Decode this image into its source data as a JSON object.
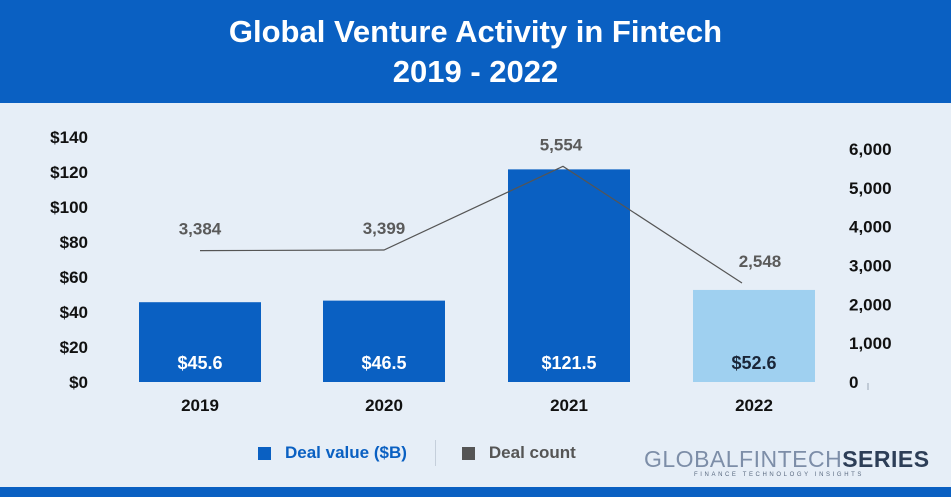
{
  "header": {
    "title_line1": "Global Venture Activity in Fintech",
    "title_line2": "2019 - 2022"
  },
  "legend": {
    "deal_value": "Deal value ($B)",
    "deal_count": "Deal count"
  },
  "brand": {
    "name_light": "GLOBALFINTECH",
    "name_bold": "SERIES",
    "tagline": "FINANCE TECHNOLOGY INSIGHTS"
  },
  "colors": {
    "header_blue": "#0a60c2",
    "bar_blue": "#0a60c2",
    "bar_light": "#9fd0f0",
    "line": "#555555",
    "background": "#e6eef7"
  },
  "chart_data": {
    "type": "bar",
    "title": "Global Venture Activity in Fintech",
    "subtitle": "2019 - 2022",
    "categories": [
      "2019",
      "2020",
      "2021",
      "2022"
    ],
    "series": [
      {
        "name": "Deal value ($B)",
        "type": "bar",
        "axis": "left",
        "values": [
          45.6,
          46.5,
          121.5,
          52.6
        ],
        "labels": [
          "$45.6",
          "$46.5",
          "$121.5",
          "$52.6"
        ],
        "highlight_last": true
      },
      {
        "name": "Deal count",
        "type": "line",
        "axis": "right",
        "values": [
          3384,
          3399,
          5554,
          2548
        ],
        "labels": [
          "3,384",
          "3,399",
          "5,554",
          "2,548"
        ]
      }
    ],
    "y_left": {
      "min": 0,
      "max": 140,
      "ticks": [
        "$0",
        "$20",
        "$40",
        "$60",
        "$80",
        "$100",
        "$120",
        "$140"
      ]
    },
    "y_right": {
      "min": 0,
      "max": 6000,
      "ticks": [
        "0",
        "1,000",
        "2,000",
        "3,000",
        "4,000",
        "5,000",
        "6,000"
      ]
    },
    "grid": false,
    "legend_position": "bottom"
  }
}
